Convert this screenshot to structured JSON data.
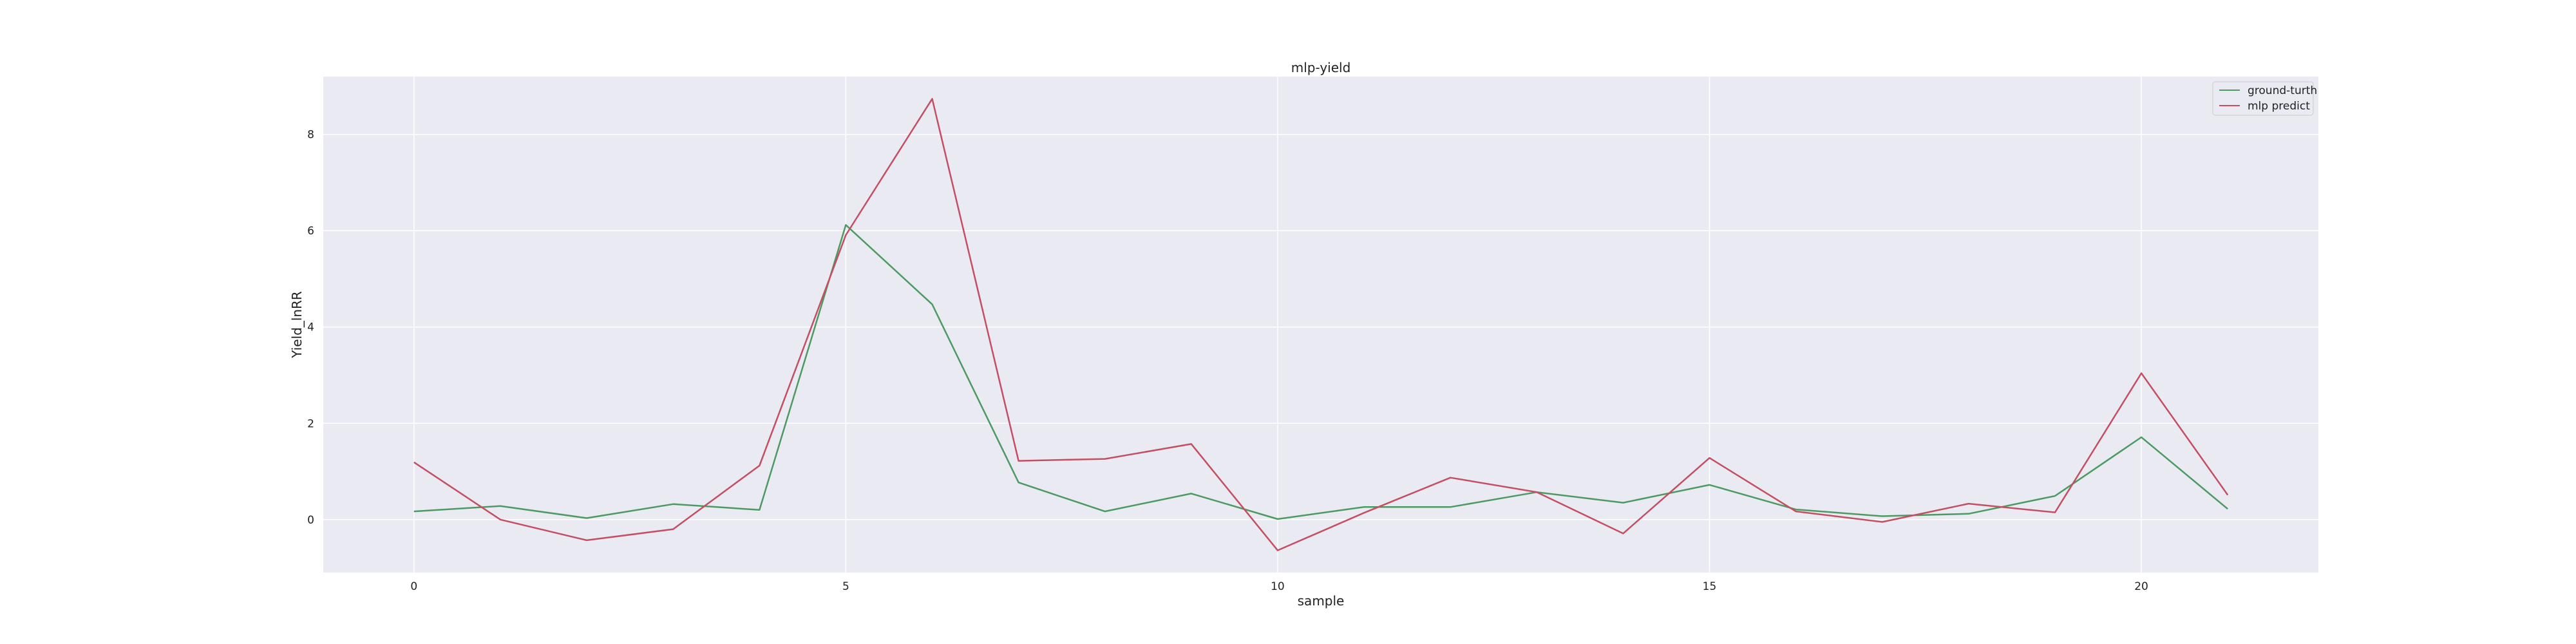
{
  "chart_data": {
    "type": "line",
    "title": "mlp-yield",
    "xlabel": "sample",
    "ylabel": "Yield_lnRR",
    "xlim": [
      -1.05,
      22.05
    ],
    "ylim": [
      -1.1,
      9.2
    ],
    "xticks": [
      0,
      5,
      10,
      15,
      20
    ],
    "yticks": [
      0,
      2,
      4,
      6,
      8
    ],
    "grid": true,
    "legend_position": "top-right",
    "x": [
      0,
      1,
      2,
      3,
      4,
      5,
      6,
      7,
      8,
      9,
      10,
      11,
      12,
      13,
      14,
      15,
      16,
      17,
      18,
      19,
      20,
      21
    ],
    "series": [
      {
        "name": "ground-turth",
        "color": "#4c9a62",
        "values": [
          0.17,
          0.28,
          0.03,
          0.32,
          0.2,
          6.12,
          4.47,
          0.77,
          0.17,
          0.54,
          0.01,
          0.26,
          0.26,
          0.57,
          0.35,
          0.72,
          0.21,
          0.07,
          0.12,
          0.49,
          1.71,
          0.22
        ]
      },
      {
        "name": "mlp predict",
        "color": "#c44e62",
        "values": [
          1.19,
          0.0,
          -0.43,
          -0.2,
          1.12,
          5.91,
          8.74,
          1.22,
          1.26,
          1.57,
          -0.64,
          0.14,
          0.87,
          0.57,
          -0.29,
          1.28,
          0.17,
          -0.05,
          0.33,
          0.15,
          3.04,
          0.51
        ]
      }
    ]
  }
}
